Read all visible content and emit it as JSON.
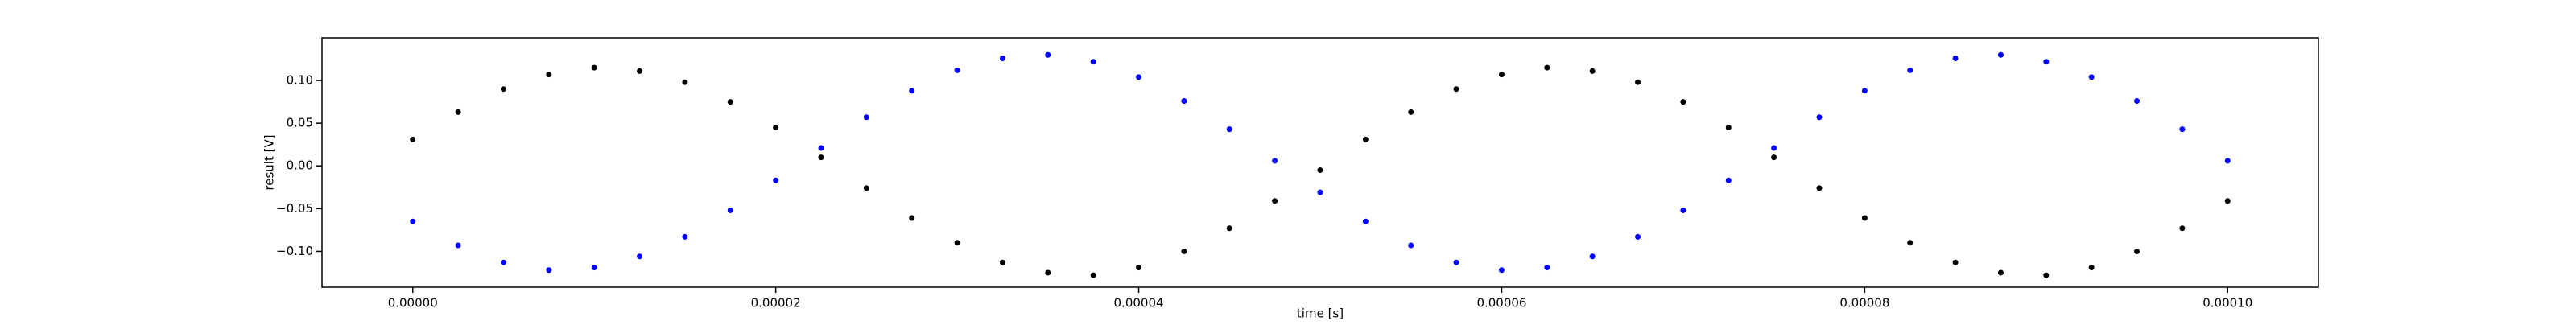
{
  "chart_data": {
    "type": "scatter",
    "xlabel": "time [s]",
    "ylabel": "result [V]",
    "x": [
      0,
      2.5e-06,
      5e-06,
      7.5e-06,
      1e-05,
      1.25e-05,
      1.5e-05,
      1.75e-05,
      2e-05,
      2.25e-05,
      2.5e-05,
      2.75e-05,
      3e-05,
      3.25e-05,
      3.5e-05,
      3.75e-05,
      4e-05,
      4.25e-05,
      4.5e-05,
      4.75e-05,
      5e-05,
      5.25e-05,
      5.5e-05,
      5.75e-05,
      6e-05,
      6.25e-05,
      6.5e-05,
      6.75e-05,
      7e-05,
      7.25e-05,
      7.5e-05,
      7.75e-05,
      8e-05,
      8.25e-05,
      8.5e-05,
      8.75e-05,
      9e-05,
      9.25e-05,
      9.5e-05,
      9.75e-05,
      0.0001
    ],
    "series": [
      {
        "color": "#000000",
        "values": [
          0.031,
          0.063,
          0.09,
          0.107,
          0.115,
          0.111,
          0.098,
          0.075,
          0.045,
          0.01,
          -0.026,
          -0.061,
          -0.09,
          -0.113,
          -0.125,
          -0.128,
          -0.119,
          -0.1,
          -0.073,
          -0.041,
          -0.005,
          0.031,
          0.063,
          0.09,
          0.107,
          0.115,
          0.111,
          0.098,
          0.075,
          0.045,
          0.01,
          -0.026,
          -0.061,
          -0.09,
          -0.113,
          -0.125,
          -0.128,
          -0.119,
          -0.1,
          -0.073,
          -0.041
        ]
      },
      {
        "color": "#0000ff",
        "values": [
          -0.065,
          -0.093,
          -0.113,
          -0.122,
          -0.119,
          -0.106,
          -0.083,
          -0.052,
          -0.017,
          0.021,
          0.057,
          0.088,
          0.112,
          0.126,
          0.13,
          0.122,
          0.104,
          0.076,
          0.043,
          0.006,
          -0.031,
          -0.065,
          -0.093,
          -0.113,
          -0.122,
          -0.119,
          -0.106,
          -0.083,
          -0.052,
          -0.017,
          0.021,
          0.057,
          0.088,
          0.112,
          0.126,
          0.13,
          0.122,
          0.104,
          0.076,
          0.043,
          0.006
        ]
      }
    ],
    "xlim": [
      -5e-06,
      0.000105
    ],
    "xticks": [
      {
        "value": 0,
        "label": "0.00000"
      },
      {
        "value": 2e-05,
        "label": "0.00002"
      },
      {
        "value": 4e-05,
        "label": "0.00004"
      },
      {
        "value": 6e-05,
        "label": "0.00006"
      },
      {
        "value": 8e-05,
        "label": "0.00008"
      },
      {
        "value": 0.0001,
        "label": "0.00010"
      }
    ],
    "ylim": [
      -0.142,
      0.15
    ],
    "yticks": [
      {
        "value": -0.1,
        "label": "−0.10"
      },
      {
        "value": -0.05,
        "label": "−0.05"
      },
      {
        "value": 0,
        "label": "0.00"
      },
      {
        "value": 0.05,
        "label": "0.05"
      },
      {
        "value": 0.1,
        "label": "0.10"
      }
    ]
  }
}
